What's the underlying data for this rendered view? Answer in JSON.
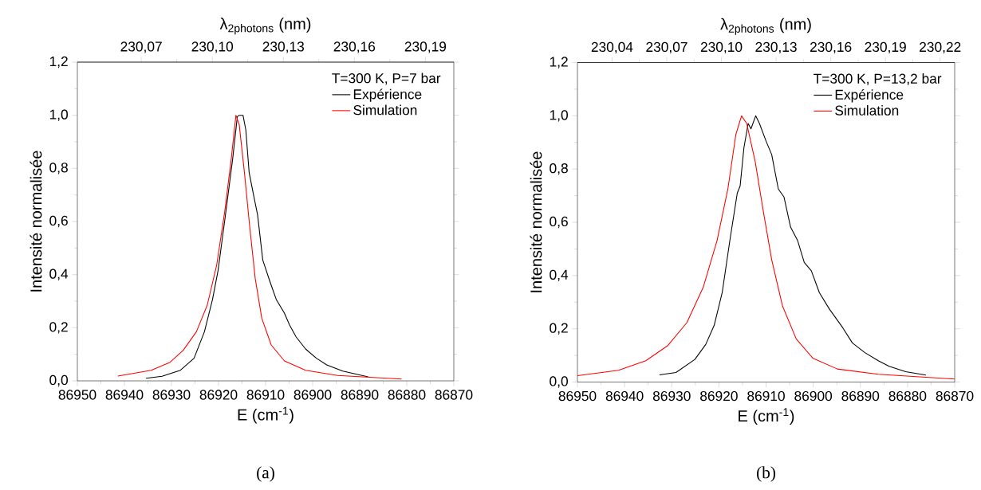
{
  "chart_data": [
    {
      "type": "line",
      "xlabel": "E (cm$^{-1}$)",
      "ylabel": "Intensité normalisée",
      "x2label": "λ$_{2photons}$ (nm)",
      "legend_title": "T=300 K, P=7 bar",
      "legend": "top right",
      "line_style": "solid",
      "xlim": [
        86950,
        86870
      ],
      "xticks": [
        86950,
        86940,
        86930,
        86920,
        86910,
        86900,
        86890,
        86880,
        86870
      ],
      "ylim": [
        0,
        1.2
      ],
      "yticks": [
        {
          "value": 0,
          "label": "0,0"
        },
        {
          "value": 0.2,
          "label": "0,2"
        },
        {
          "value": 0.4,
          "label": "0,4"
        },
        {
          "value": 0.6,
          "label": "0,6"
        },
        {
          "value": 0.8,
          "label": "0,8"
        },
        {
          "value": 1.0,
          "label": "1,0"
        },
        {
          "value": 1.2,
          "label": "1,2"
        }
      ],
      "x2lim": [
        230.043,
        230.202
      ],
      "x2ticks": [
        {
          "value": 230.07,
          "label": "230,07"
        },
        {
          "value": 230.1,
          "label": "230,10"
        },
        {
          "value": 230.13,
          "label": "230,13"
        },
        {
          "value": 230.16,
          "label": "230,16"
        },
        {
          "value": 230.19,
          "label": "230,19"
        }
      ],
      "annotations": [
        "(a)"
      ],
      "series": [
        {
          "name": "Expérience",
          "color": "#000000",
          "x": [
            86935.4,
            86932.0,
            86928.1,
            86925.2,
            86923.0,
            86921.3,
            86920.1,
            86918.6,
            86917.0,
            86916.0,
            86915.6,
            86914.8,
            86914.2,
            86913.5,
            86912.5,
            86911.7,
            86910.6,
            86909.1,
            86907.7,
            86906.0,
            86904.9,
            86903.5,
            86901.5,
            86899.2,
            86897.0,
            86893.6,
            86888.2
          ],
          "values": [
            0.01,
            0.017,
            0.04,
            0.085,
            0.185,
            0.305,
            0.415,
            0.615,
            0.835,
            0.995,
            1.0,
            1.0,
            0.945,
            0.785,
            0.695,
            0.625,
            0.455,
            0.375,
            0.305,
            0.255,
            0.21,
            0.165,
            0.12,
            0.085,
            0.06,
            0.037,
            0.015
          ]
        },
        {
          "name": "Simulation",
          "color": "#ff0000",
          "x": [
            86941.4,
            86934.3,
            86930.3,
            86927.5,
            86924.7,
            86922.4,
            86920.4,
            86918.7,
            86917.3,
            86916.3,
            86915.6,
            86914.5,
            86913.4,
            86912.2,
            86910.8,
            86908.8,
            86906.0,
            86901.5,
            86894.7,
            86881.1
          ],
          "values": [
            0.018,
            0.04,
            0.07,
            0.115,
            0.185,
            0.285,
            0.435,
            0.635,
            0.835,
            1.0,
            0.965,
            0.785,
            0.585,
            0.385,
            0.235,
            0.135,
            0.075,
            0.04,
            0.02,
            0.007
          ]
        }
      ]
    },
    {
      "type": "line",
      "xlabel": "E (cm$^{-1}$)",
      "ylabel": "Intensité normalisée",
      "x2label": "λ$_{2photons}$ (nm)",
      "legend_title": "T=300 K, P=13,2 bar",
      "legend": "top right",
      "line_style": "solid",
      "xlim": [
        86950,
        86870
      ],
      "xticks": [
        86950,
        86940,
        86930,
        86920,
        86910,
        86900,
        86890,
        86880,
        86870
      ],
      "ylim": [
        0,
        1.2
      ],
      "yticks": [
        {
          "value": 0,
          "label": "0,0"
        },
        {
          "value": 0.2,
          "label": "0,2"
        },
        {
          "value": 0.4,
          "label": "0,4"
        },
        {
          "value": 0.6,
          "label": "0,6"
        },
        {
          "value": 0.8,
          "label": "0,8"
        },
        {
          "value": 1.0,
          "label": "1,0"
        },
        {
          "value": 1.2,
          "label": "1,2"
        }
      ],
      "x2lim": [
        230.021,
        230.228
      ],
      "x2ticks": [
        {
          "value": 230.04,
          "label": "230,04"
        },
        {
          "value": 230.07,
          "label": "230,07"
        },
        {
          "value": 230.1,
          "label": "230,10"
        },
        {
          "value": 230.13,
          "label": "230,13"
        },
        {
          "value": 230.16,
          "label": "230,16"
        },
        {
          "value": 230.19,
          "label": "230,19"
        },
        {
          "value": 230.22,
          "label": "230,22"
        }
      ],
      "annotations": [
        "(b)"
      ],
      "series": [
        {
          "name": "Expérience",
          "color": "#000000",
          "x": [
            86932.6,
            86929.1,
            86925.1,
            86922.8,
            86921.0,
            86919.3,
            86917.6,
            86916.1,
            86915.5,
            86914.7,
            86913.8,
            86913.2,
            86912.2,
            86911.4,
            86910.0,
            86908.8,
            86907.4,
            86906.2,
            86904.8,
            86903.3,
            86901.9,
            86900.4,
            86898.7,
            86896.6,
            86893.7,
            86891.7,
            86889.1,
            86886.2,
            86883.9,
            86880.4,
            86876.1
          ],
          "values": [
            0.027,
            0.036,
            0.085,
            0.141,
            0.213,
            0.336,
            0.541,
            0.71,
            0.736,
            0.879,
            0.971,
            0.951,
            1.0,
            0.971,
            0.905,
            0.854,
            0.725,
            0.695,
            0.582,
            0.531,
            0.449,
            0.418,
            0.336,
            0.275,
            0.203,
            0.147,
            0.111,
            0.08,
            0.059,
            0.039,
            0.026
          ]
        },
        {
          "name": "Simulation",
          "color": "#ff0000",
          "x": [
            86950,
            86941.3,
            86935.5,
            86930.9,
            86926.8,
            86923.3,
            86920.4,
            86918.1,
            86916.4,
            86915.2,
            86914.1,
            86912.3,
            86910.6,
            86908.8,
            86906.5,
            86903.6,
            86900.1,
            86894.9,
            86886.2,
            86870
          ],
          "values": [
            0.024,
            0.044,
            0.08,
            0.136,
            0.223,
            0.357,
            0.531,
            0.725,
            0.93,
            1.0,
            0.971,
            0.828,
            0.643,
            0.459,
            0.285,
            0.162,
            0.09,
            0.049,
            0.029,
            0.011
          ]
        }
      ]
    }
  ]
}
